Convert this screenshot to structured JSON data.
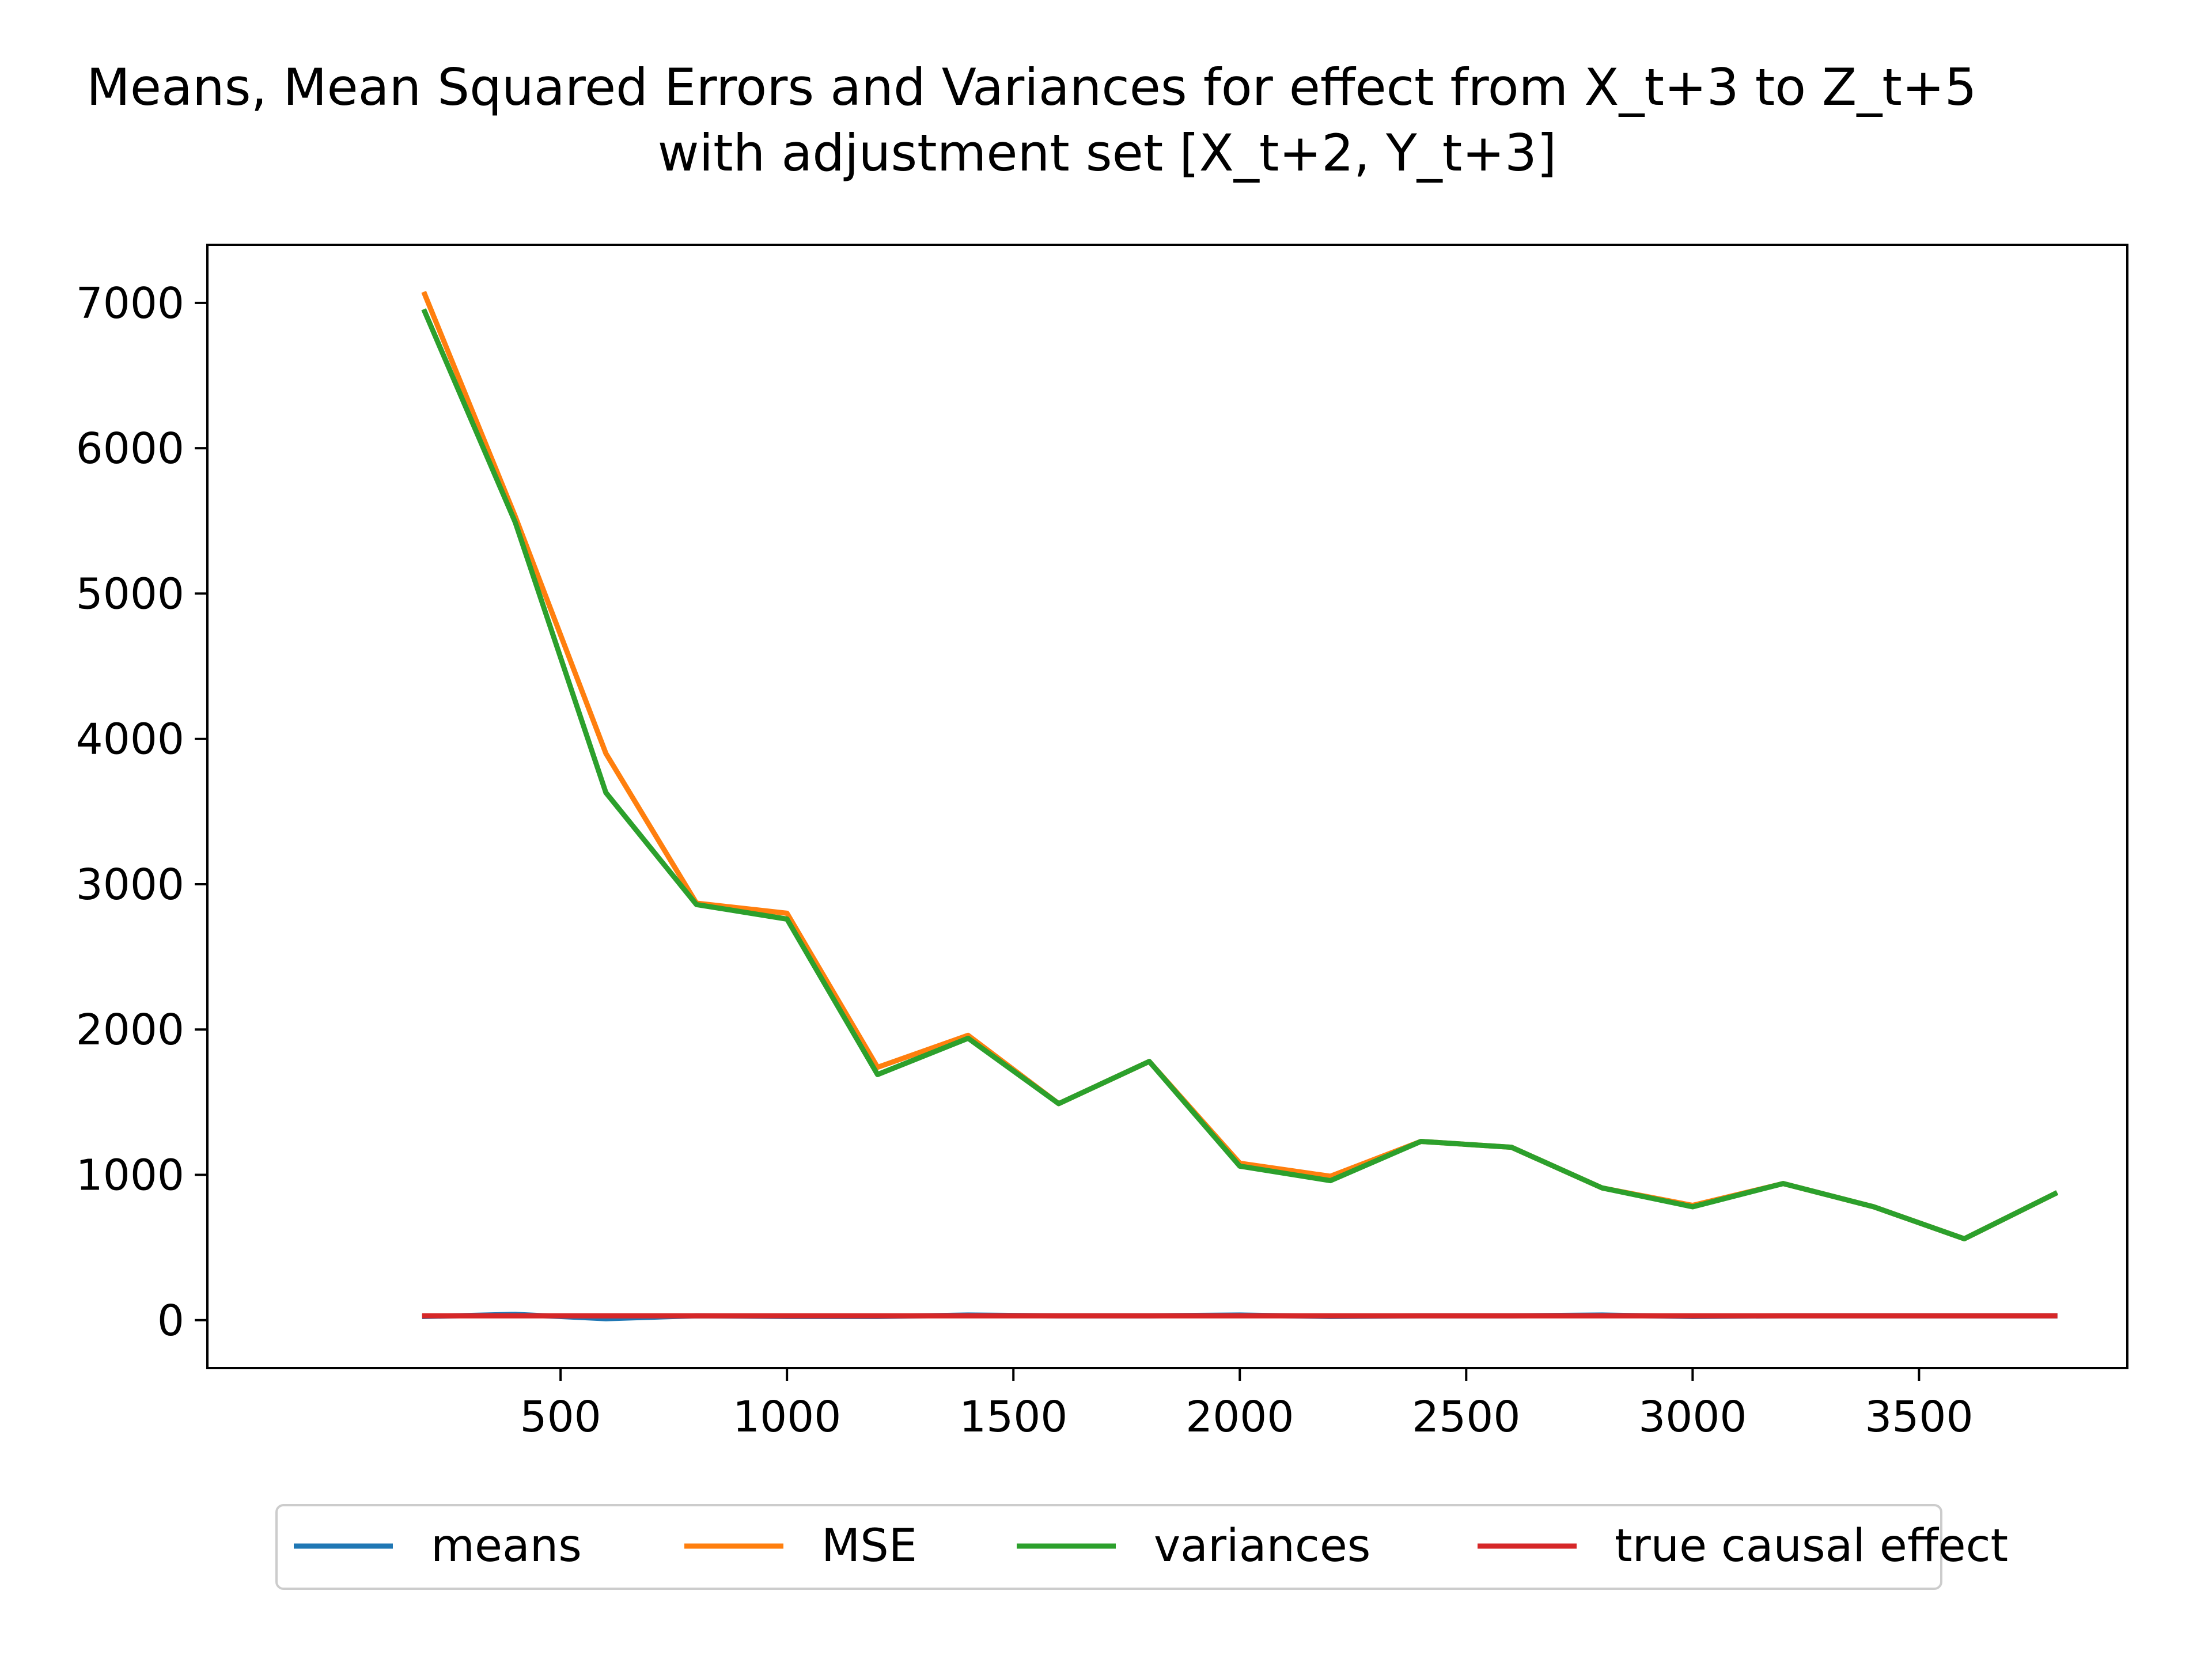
{
  "chart_data": {
    "type": "line",
    "title": "Means, Mean Squared Errors and Variances for effect from X_t+3 to Z_t+5",
    "subtitle": "with adjustment set [X_t+2, Y_t+3]",
    "xlabel": "",
    "ylabel": "",
    "x": [
      200,
      400,
      600,
      800,
      1000,
      1200,
      1400,
      1600,
      1800,
      2000,
      2200,
      2400,
      2600,
      2800,
      3000,
      3200,
      3400,
      3600,
      3800
    ],
    "xlim": [
      -280,
      3960
    ],
    "ylim": [
      -330,
      7400
    ],
    "xticks": [
      500,
      1000,
      1500,
      2000,
      2500,
      3000,
      3500
    ],
    "xtick_labels": [
      "500",
      "1000",
      "1500",
      "2000",
      "2500",
      "3000",
      "3500"
    ],
    "yticks": [
      0,
      1000,
      2000,
      3000,
      4000,
      5000,
      6000,
      7000
    ],
    "ytick_labels": [
      "0",
      "1000",
      "2000",
      "3000",
      "4000",
      "5000",
      "6000",
      "7000"
    ],
    "grid": false,
    "legend_position": "bottom-center",
    "series": [
      {
        "name": "means",
        "color": "#1f77b4",
        "values": [
          25,
          40,
          10,
          30,
          25,
          25,
          35,
          30,
          30,
          35,
          25,
          30,
          30,
          35,
          25,
          30,
          30,
          30,
          30
        ]
      },
      {
        "name": "MSE",
        "color": "#ff7f0e",
        "values": [
          7060,
          5530,
          3900,
          2870,
          2800,
          1740,
          1960,
          1490,
          1780,
          1080,
          990,
          1230,
          1190,
          910,
          790,
          940,
          780,
          560,
          870
        ]
      },
      {
        "name": "variances",
        "color": "#2ca02c",
        "values": [
          6940,
          5490,
          3630,
          2860,
          2760,
          1690,
          1940,
          1490,
          1780,
          1060,
          960,
          1230,
          1190,
          910,
          780,
          940,
          780,
          560,
          870
        ]
      },
      {
        "name": "true causal effect",
        "color": "#d62728",
        "values": [
          30,
          30,
          30,
          30,
          30,
          30,
          30,
          30,
          30,
          30,
          30,
          30,
          30,
          30,
          30,
          30,
          30,
          30,
          30
        ]
      }
    ]
  }
}
